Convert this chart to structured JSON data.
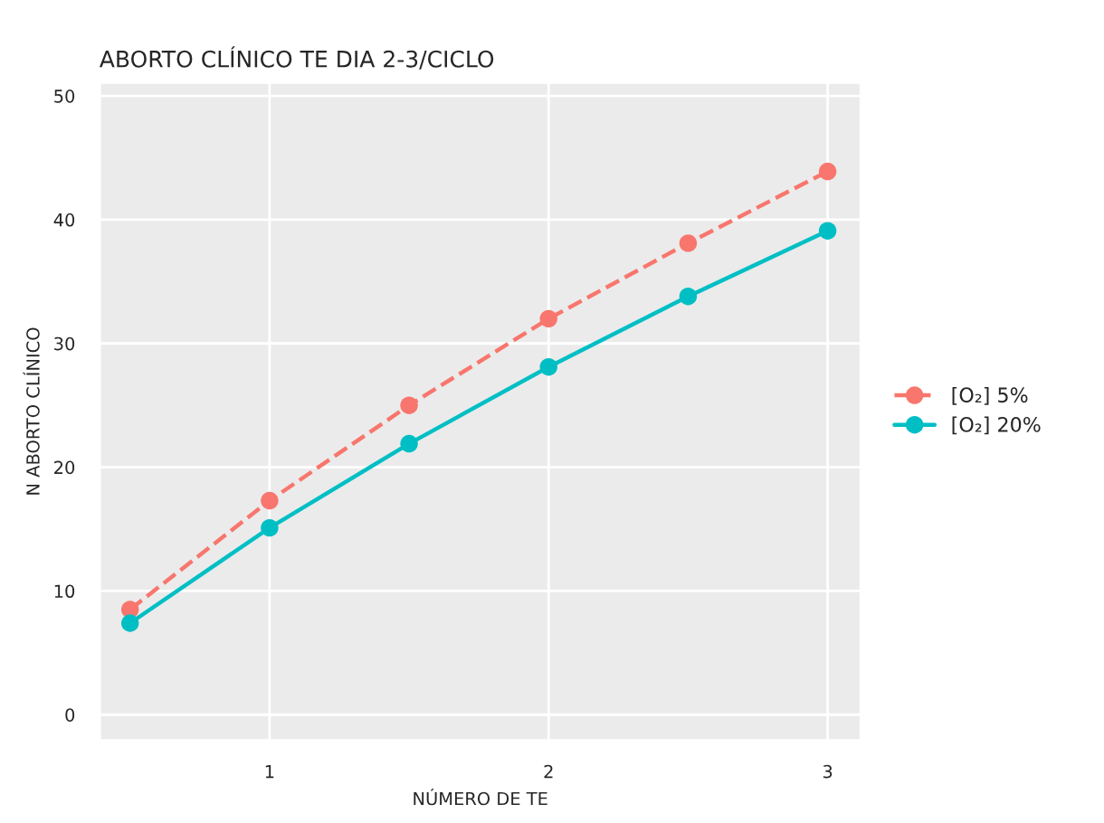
{
  "chart_data": {
    "type": "line",
    "title": "ABORTO CLÍNICO TE DIA 2-3/CICLO",
    "xlabel": "NÚMERO DE TE",
    "ylabel": "N ABORTO CLÍNICO",
    "x": [
      0.5,
      1,
      1.5,
      2,
      2.5,
      3
    ],
    "series": [
      {
        "name": "[O₂] 5%",
        "color": "#f8766d",
        "line_style": "dashed",
        "values": [
          8.5,
          17.3,
          25.0,
          32.0,
          38.1,
          43.9
        ]
      },
      {
        "name": "[O₂] 20%",
        "color": "#00bfc4",
        "line_style": "solid",
        "values": [
          7.4,
          15.1,
          21.9,
          28.1,
          33.8,
          39.1
        ]
      }
    ],
    "xlim": [
      0.39,
      3.12
    ],
    "xticks": [
      1,
      2,
      3
    ],
    "ylim": [
      -2.1,
      51.1
    ],
    "yticks": [
      0,
      10,
      20,
      30,
      40,
      50
    ],
    "marker": "circle",
    "grid": true,
    "legend": "right"
  }
}
